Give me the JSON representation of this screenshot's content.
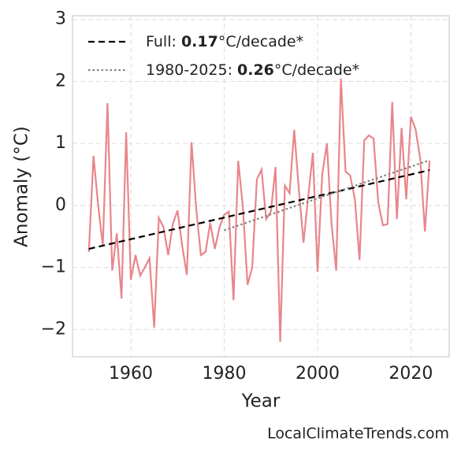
{
  "chart_data": {
    "type": "line",
    "xlabel": "Year",
    "ylabel": "Anomaly (°C)",
    "source": "LocalClimateTrends.com",
    "xlim": [
      1947.5,
      2028.2
    ],
    "ylim": [
      -2.44,
      3.06
    ],
    "xticks": [
      1960,
      1980,
      2000,
      2020
    ],
    "yticks": [
      {
        "value": -2,
        "label": "−2"
      },
      {
        "value": -1,
        "label": "−1"
      },
      0,
      1,
      2,
      3
    ],
    "grid": true,
    "legend": "upper left",
    "series": [
      {
        "color": "#e8868b",
        "style": "solid",
        "x": [
          1951,
          1952,
          1953,
          1954,
          1955,
          1956,
          1957,
          1958,
          1959,
          1960,
          1961,
          1962,
          1963,
          1964,
          1965,
          1966,
          1967,
          1968,
          1969,
          1970,
          1971,
          1972,
          1973,
          1974,
          1975,
          1976,
          1977,
          1978,
          1979,
          1980,
          1981,
          1982,
          1983,
          1984,
          1985,
          1986,
          1987,
          1988,
          1989,
          1990,
          1991,
          1992,
          1993,
          1994,
          1995,
          1996,
          1997,
          1998,
          1999,
          2000,
          2001,
          2002,
          2003,
          2004,
          2005,
          2006,
          2007,
          2008,
          2009,
          2010,
          2011,
          2012,
          2013,
          2014,
          2015,
          2016,
          2017,
          2018,
          2019,
          2020,
          2021,
          2022,
          2023,
          2024
        ],
        "values": [
          -0.75,
          0.8,
          0.0,
          -0.65,
          1.65,
          -1.05,
          -0.45,
          -1.5,
          1.18,
          -1.2,
          -0.8,
          -1.13,
          -1.0,
          -0.85,
          -1.97,
          -0.2,
          -0.35,
          -0.8,
          -0.3,
          -0.08,
          -0.65,
          -1.12,
          1.02,
          -0.05,
          -0.8,
          -0.75,
          -0.28,
          -0.7,
          -0.35,
          -0.15,
          -0.1,
          -1.53,
          0.72,
          -0.02,
          -1.28,
          -1.0,
          0.42,
          0.58,
          -0.22,
          -0.1,
          0.62,
          -2.2,
          0.32,
          0.2,
          1.22,
          0.25,
          -0.6,
          0.15,
          0.85,
          -1.07,
          0.5,
          1.0,
          -0.3,
          -1.05,
          2.05,
          0.55,
          0.48,
          0.1,
          -0.88,
          1.05,
          1.13,
          1.08,
          0.05,
          -0.32,
          -0.3,
          1.67,
          -0.22,
          1.25,
          0.1,
          1.43,
          1.23,
          0.75,
          -0.42,
          0.72
        ]
      },
      {
        "name": [
          "Full: ",
          "0.17",
          "°C/decade*"
        ],
        "color": "#000000",
        "style": "dashed",
        "x": [
          1951,
          2024
        ],
        "values": [
          -0.7,
          0.57
        ]
      },
      {
        "name": [
          "1980-2025: ",
          "0.26",
          "°C/decade*"
        ],
        "color": "#808080",
        "style": "dotted",
        "x": [
          1980,
          2024
        ],
        "values": [
          -0.4,
          0.73
        ]
      }
    ]
  }
}
